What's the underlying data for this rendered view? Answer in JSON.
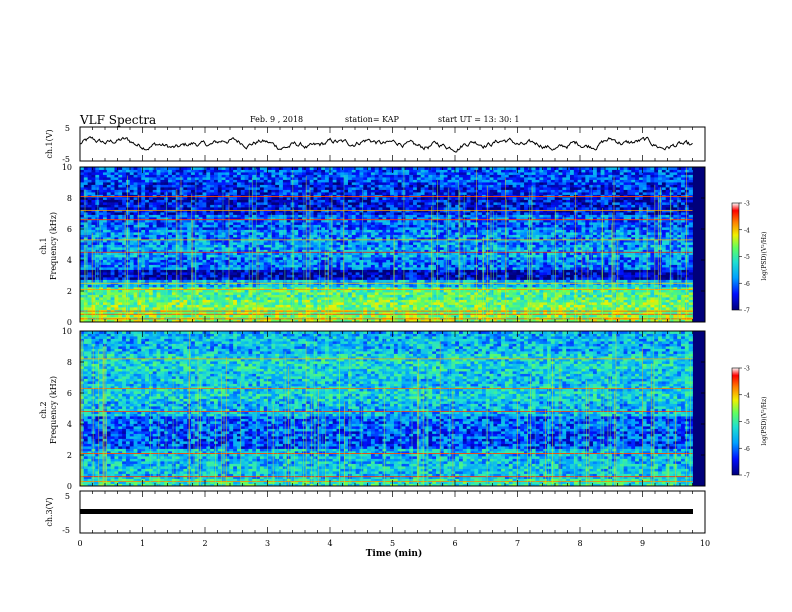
{
  "header": {
    "title": "VLF Spectra",
    "date": "Feb. 9 , 2018",
    "station": "station= KAP",
    "start_ut": "start UT =  13: 30: 1"
  },
  "colors": {
    "spectrogram_stops": [
      "#00007a",
      "#0010ff",
      "#00a0ff",
      "#20e0d0",
      "#60ff60",
      "#f0f000",
      "#ff8000",
      "#ff0000",
      "#ffffff"
    ],
    "waveform": "#000000"
  },
  "chart_data": [
    {
      "type": "line",
      "name": "ch1-waveform",
      "ylabel": "ch.1(V)",
      "ylim": [
        -5,
        5
      ],
      "yticks": [
        "5",
        "-5"
      ],
      "xlim": [
        0,
        10
      ],
      "description_level": "noisy waveform oscillating roughly between -2.5 and 2.5 V"
    },
    {
      "type": "heatmap",
      "name": "ch1-spectrogram",
      "ylabel": "ch.1\nFrequency (kHz)",
      "ylim": [
        0,
        10
      ],
      "yticks": [
        "0",
        "2",
        "4",
        "6",
        "8",
        "10"
      ],
      "xlim": [
        0,
        9.8
      ],
      "colorbar": {
        "label": "log(PSD)(V²/Hz)",
        "range": [
          -7,
          -3
        ],
        "ticks": [
          "-3",
          "-4",
          "-5",
          "-6",
          "-7"
        ]
      },
      "bands": [
        {
          "f": [
            0.0,
            0.4
          ],
          "level": 0.55
        },
        {
          "f": [
            0.4,
            1.0
          ],
          "level": 0.52
        },
        {
          "f": [
            1.0,
            1.5
          ],
          "level": 0.5
        },
        {
          "f": [
            1.5,
            2.2
          ],
          "level": 0.45
        },
        {
          "f": [
            2.2,
            2.8
          ],
          "level": 0.3
        },
        {
          "f": [
            2.8,
            3.4
          ],
          "level": 0.06
        },
        {
          "f": [
            3.4,
            4.2
          ],
          "level": 0.22
        },
        {
          "f": [
            4.2,
            5.0
          ],
          "level": 0.27
        },
        {
          "f": [
            5.0,
            6.0
          ],
          "level": 0.24
        },
        {
          "f": [
            6.0,
            7.0
          ],
          "level": 0.2
        },
        {
          "f": [
            7.0,
            8.0
          ],
          "level": 0.1
        },
        {
          "f": [
            8.0,
            9.0
          ],
          "level": 0.13
        },
        {
          "f": [
            9.0,
            10.0
          ],
          "level": 0.18
        }
      ],
      "tone_lines_khz": [
        0.2,
        0.5,
        0.7,
        2.1,
        2.5,
        4.5,
        5.3,
        6.6,
        7.2,
        8.1
      ]
    },
    {
      "type": "heatmap",
      "name": "ch2-spectrogram",
      "ylabel": "ch.2\nFrequency (kHz)",
      "ylim": [
        0,
        10
      ],
      "yticks": [
        "0",
        "2",
        "4",
        "6",
        "8",
        "10"
      ],
      "xlim": [
        0,
        9.8
      ],
      "colorbar": {
        "label": "log(PSD)(V²/Hz)",
        "range": [
          -7,
          -3
        ],
        "ticks": [
          "-3",
          "-4",
          "-5",
          "-6",
          "-7"
        ]
      },
      "bands": [
        {
          "f": [
            0.0,
            0.5
          ],
          "level": 0.4
        },
        {
          "f": [
            0.5,
            1.5
          ],
          "level": 0.32
        },
        {
          "f": [
            1.5,
            2.5
          ],
          "level": 0.3
        },
        {
          "f": [
            2.5,
            3.5
          ],
          "level": 0.18
        },
        {
          "f": [
            3.5,
            4.5
          ],
          "level": 0.2
        },
        {
          "f": [
            4.5,
            5.5
          ],
          "level": 0.3
        },
        {
          "f": [
            5.5,
            6.5
          ],
          "level": 0.34
        },
        {
          "f": [
            6.5,
            7.5
          ],
          "level": 0.32
        },
        {
          "f": [
            7.5,
            8.5
          ],
          "level": 0.35
        },
        {
          "f": [
            8.5,
            10.0
          ],
          "level": 0.3
        }
      ],
      "tone_lines_khz": [
        0.3,
        0.6,
        2.1,
        4.8,
        6.3,
        8.2
      ]
    },
    {
      "type": "line",
      "name": "ch3-waveform",
      "ylabel": "ch.3(V)",
      "ylim": [
        -5,
        5
      ],
      "yticks": [
        "5",
        "-5"
      ],
      "xlim": [
        0,
        10
      ],
      "constant_value": 0
    }
  ],
  "x_axis": {
    "label": "Time (min)",
    "ticks": [
      "0",
      "1",
      "2",
      "3",
      "4",
      "5",
      "6",
      "7",
      "8",
      "9",
      "10"
    ]
  }
}
